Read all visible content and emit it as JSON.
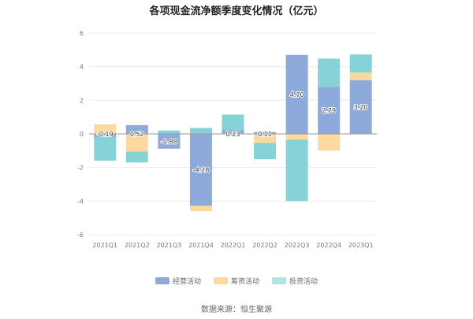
{
  "chart_data": {
    "type": "bar",
    "stacked": true,
    "title": "各项现金流净额季度变化情况（亿元）",
    "categories": [
      "2021Q1",
      "2021Q2",
      "2021Q3",
      "2021Q4",
      "2022Q1",
      "2022Q2",
      "2022Q3",
      "2022Q4",
      "2023Q1"
    ],
    "series": [
      {
        "name": "经营活动",
        "color": "#8eaadb",
        "values": [
          -0.19,
          0.52,
          -0.88,
          -4.28,
          0.23,
          0.11,
          4.7,
          2.79,
          3.2
        ],
        "labels": [
          "-0.19",
          "0.52",
          "-0.88",
          "-4.28",
          "0.23",
          "0.11",
          "4.70",
          "2.79",
          "3.20"
        ]
      },
      {
        "name": "筹资活动",
        "color": "#fdd9a0",
        "values": [
          0.57,
          -1.05,
          0.0,
          -0.32,
          0.0,
          -0.54,
          -0.35,
          -1.0,
          0.45
        ]
      },
      {
        "name": "投资活动",
        "color": "#85d3d6",
        "values": [
          -1.4,
          -0.65,
          0.2,
          0.35,
          0.92,
          -0.97,
          -3.65,
          1.69,
          1.08
        ]
      }
    ],
    "yticks": [
      -6,
      -4,
      -2,
      0,
      2,
      4,
      6
    ],
    "ylim": [
      -6,
      6
    ],
    "grid": true,
    "legend": "bottom"
  },
  "source": "数据来源：恒生聚源"
}
